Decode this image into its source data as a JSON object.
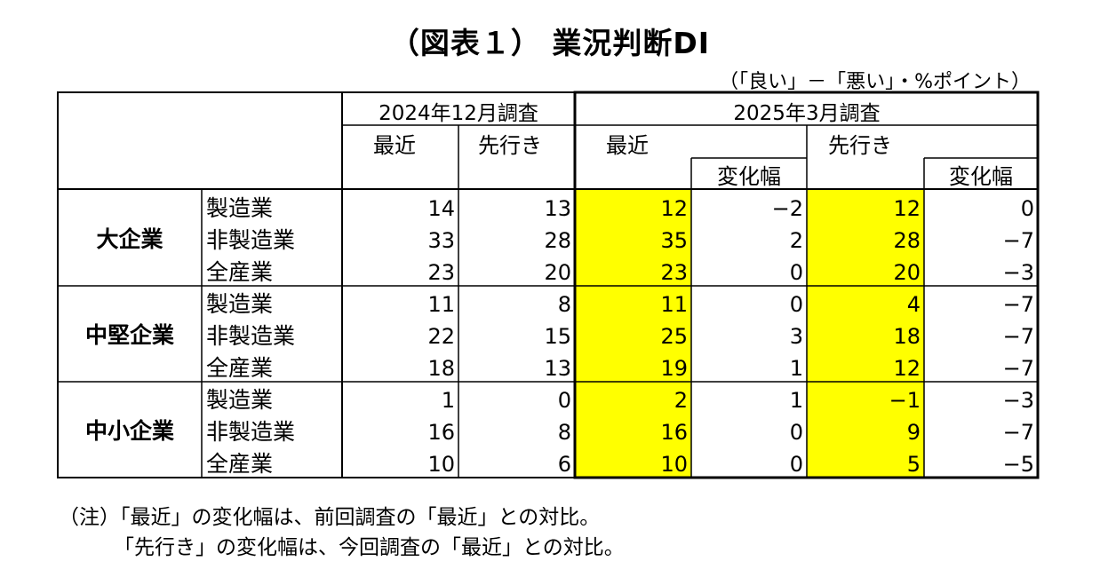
{
  "title": "（図表１） 業況判断DI",
  "unit_note": "（「良い」－「悪い」・%ポイント）",
  "header": {
    "survey_prev": "2024年12月調査",
    "survey_curr": "2025年3月調査",
    "recent": "最近",
    "forecast": "先行き",
    "change": "変化幅"
  },
  "colors": {
    "highlight": "#ffff00",
    "border": "#000000"
  },
  "chart_data": {
    "type": "table",
    "columns": [
      "2024年12月調査 最近",
      "2024年12月調査 先行き",
      "2025年3月調査 最近",
      "2025年3月調査 最近 変化幅",
      "2025年3月調査 先行き",
      "2025年3月調査 先行き 変化幅"
    ],
    "groups": [
      {
        "name": "大企業",
        "rows": [
          {
            "label": "製造業",
            "values": [
              "14",
              "13",
              "12",
              "−2",
              "12",
              "0"
            ]
          },
          {
            "label": "非製造業",
            "values": [
              "33",
              "28",
              "35",
              "2",
              "28",
              "−7"
            ]
          },
          {
            "label": "全産業",
            "values": [
              "23",
              "20",
              "23",
              "0",
              "20",
              "−3"
            ]
          }
        ]
      },
      {
        "name": "中堅企業",
        "rows": [
          {
            "label": "製造業",
            "values": [
              "11",
              "8",
              "11",
              "0",
              "4",
              "−7"
            ]
          },
          {
            "label": "非製造業",
            "values": [
              "22",
              "15",
              "25",
              "3",
              "18",
              "−7"
            ]
          },
          {
            "label": "全産業",
            "values": [
              "18",
              "13",
              "19",
              "1",
              "12",
              "−7"
            ]
          }
        ]
      },
      {
        "name": "中小企業",
        "rows": [
          {
            "label": "製造業",
            "values": [
              "1",
              "0",
              "2",
              "1",
              "−1",
              "−3"
            ]
          },
          {
            "label": "非製造業",
            "values": [
              "16",
              "8",
              "16",
              "0",
              "9",
              "−7"
            ]
          },
          {
            "label": "全産業",
            "values": [
              "10",
              "6",
              "10",
              "0",
              "5",
              "−5"
            ]
          }
        ]
      }
    ],
    "highlighted_columns": [
      2,
      4
    ]
  },
  "notes": [
    "（注）「最近」の変化幅は、前回調査の「最近」との対比。",
    "「先行き」の変化幅は、今回調査の「最近」との対比。"
  ]
}
